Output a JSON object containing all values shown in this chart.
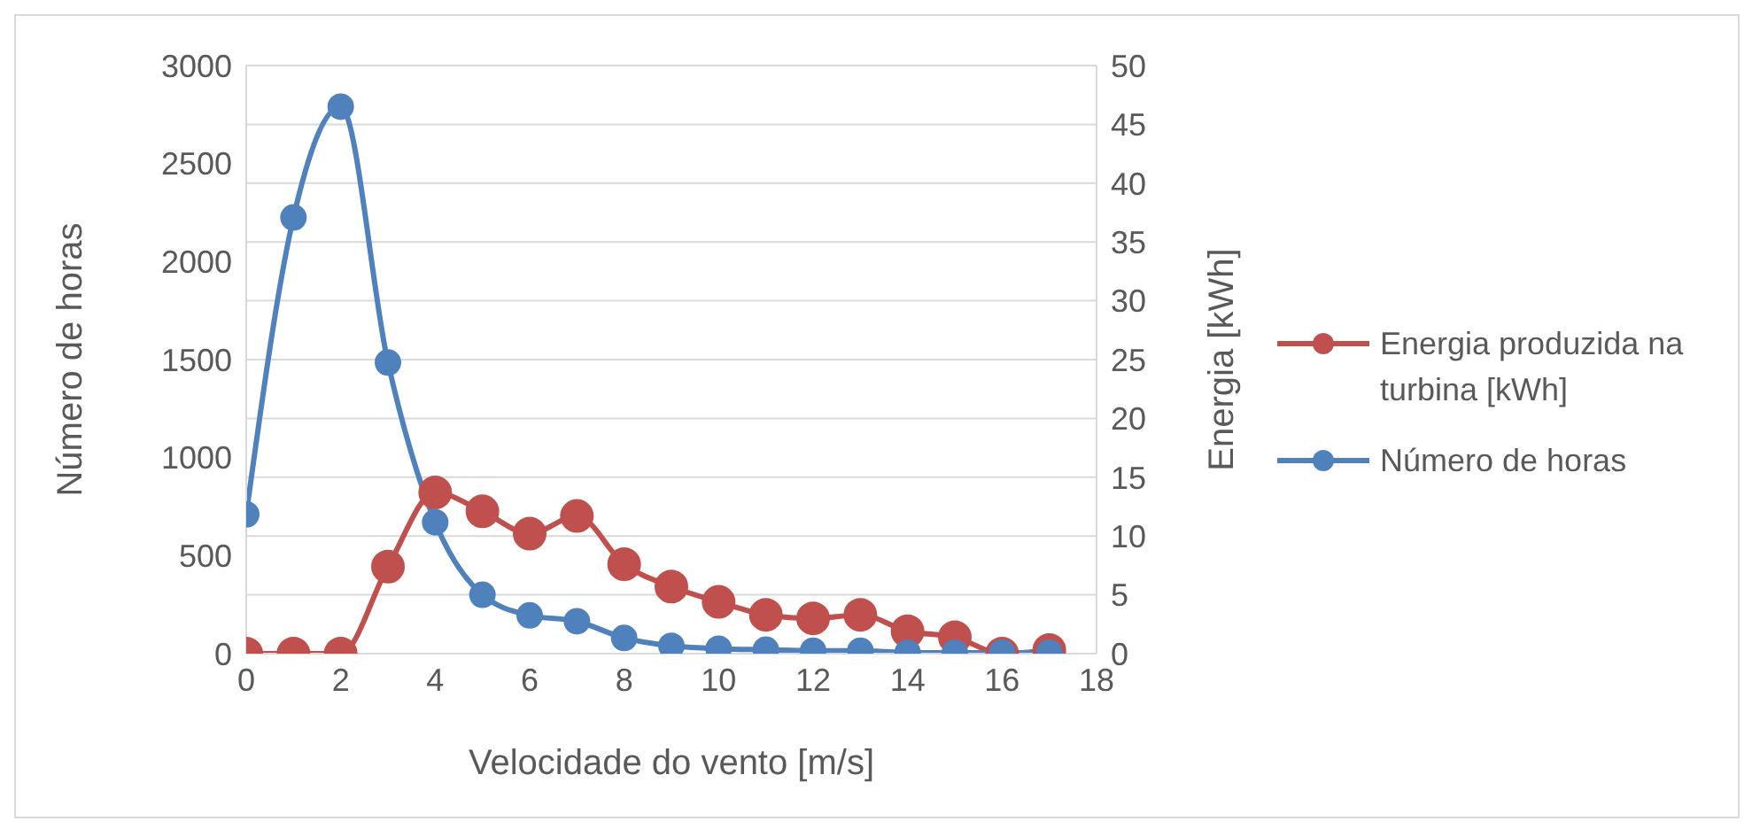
{
  "chart_data": {
    "type": "line",
    "xlabel": "Velocidade do vento [m/s]",
    "ylabel": "Número de horas",
    "y2label": "Energia [kWh]",
    "x": [
      0,
      1,
      2,
      3,
      4,
      5,
      6,
      7,
      8,
      9,
      10,
      11,
      12,
      13,
      14,
      15,
      16,
      17
    ],
    "series": [
      {
        "name": "Energia produzida na turbina [kWh]",
        "color": "#c0504d",
        "axis": "y2",
        "values": [
          0,
          0,
          0,
          7.4,
          13.7,
          12.1,
          10.2,
          11.7,
          7.6,
          5.7,
          4.4,
          3.3,
          3.0,
          3.3,
          1.9,
          1.4,
          0,
          0.3
        ]
      },
      {
        "name": "Número de horas",
        "color": "#4f81bd",
        "values": [
          710,
          2225,
          2790,
          1485,
          670,
          300,
          195,
          165,
          80,
          40,
          25,
          20,
          15,
          15,
          5,
          5,
          5,
          5
        ]
      }
    ],
    "xlim": [
      0,
      18
    ],
    "xticks": [
      0,
      2,
      4,
      6,
      8,
      10,
      12,
      14,
      16,
      18
    ],
    "ylim": [
      0,
      3000
    ],
    "yticks": [
      0,
      500,
      1000,
      1500,
      2000,
      2500,
      3000
    ],
    "y2lim": [
      0,
      50
    ],
    "y2ticks": [
      0,
      5,
      10,
      15,
      20,
      25,
      30,
      35,
      40,
      45,
      50
    ],
    "grid": "y",
    "legend": "right",
    "marker": "circle"
  }
}
